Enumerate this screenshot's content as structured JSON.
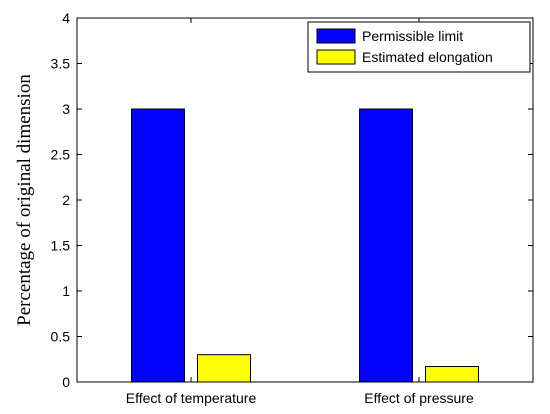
{
  "chart_data": {
    "type": "bar",
    "title": "",
    "xlabel": "",
    "ylabel": "Percentage of original dimension",
    "categories": [
      "Effect of temperature",
      "Effect of pressure"
    ],
    "series": [
      {
        "name": "Permissible limit",
        "color": "#0000ff",
        "values": [
          3,
          3
        ]
      },
      {
        "name": "Estimated elongation",
        "color": "#ffff00",
        "values": [
          0.3,
          0.17
        ]
      }
    ],
    "ylim": [
      0,
      4
    ],
    "yticks": [
      0,
      0.5,
      1,
      1.5,
      2,
      2.5,
      3,
      3.5,
      4
    ],
    "ytick_labels": [
      "0",
      "0.5",
      "1",
      "1.5",
      "2",
      "2.5",
      "3",
      "3.5",
      "4"
    ],
    "grid": false,
    "legend_position": "top-right"
  }
}
